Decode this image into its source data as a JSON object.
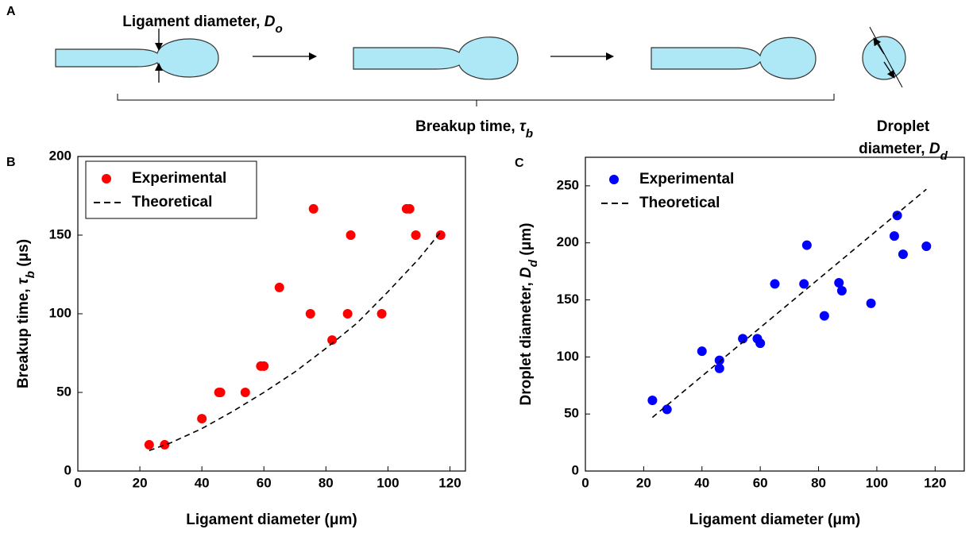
{
  "diagram": {
    "panel": "A",
    "ligament_label": {
      "text": "Ligament diameter, ",
      "symbol": "D",
      "subscript": "o"
    },
    "breakup_label": {
      "text": "Breakup time, ",
      "symbol": "τ",
      "subscript": "b"
    },
    "droplet_label": {
      "line1": "Droplet",
      "text": "diameter, ",
      "symbol": "D",
      "subscript": "d"
    }
  },
  "chart_data": [
    {
      "type": "scatter",
      "panel": "B",
      "xlabel": "Ligament diameter (μm)",
      "ylabel": {
        "text": "Breakup time, ",
        "symbol": "τ",
        "subscript": "b",
        "unit": " (μs)"
      },
      "xlim": [
        0,
        125
      ],
      "xticks": [
        0,
        20,
        40,
        60,
        80,
        100,
        120
      ],
      "ylim": [
        0,
        200
      ],
      "yticks": [
        0,
        50,
        100,
        150,
        200
      ],
      "legend": "top-left",
      "series": [
        {
          "name": "Experimental",
          "color": "#ff0000",
          "mode": "markers",
          "x": [
            23,
            28,
            40,
            45.5,
            46,
            54,
            59,
            60,
            65,
            75,
            76,
            82,
            87,
            88,
            98,
            106,
            107,
            109,
            117
          ],
          "values": [
            16.7,
            16.7,
            33.3,
            50,
            50,
            50,
            66.7,
            66.7,
            116.7,
            100,
            166.7,
            83.3,
            100,
            150,
            100,
            166.7,
            166.7,
            150,
            150
          ]
        },
        {
          "name": "Theoretical",
          "color": "#000000",
          "mode": "dashed-line",
          "x": [
            23,
            30,
            40,
            50,
            60,
            70,
            80,
            90,
            100,
            110,
            117
          ],
          "values": [
            13,
            18,
            27,
            38,
            50,
            63,
            78,
            94,
            114,
            135,
            152
          ]
        }
      ]
    },
    {
      "type": "scatter",
      "panel": "C",
      "xlabel": "Ligament diameter (μm)",
      "ylabel": {
        "text": "Droplet diameter, ",
        "symbol": "D",
        "subscript": "d",
        "unit": " (μm)"
      },
      "xlim": [
        0,
        130
      ],
      "xticks": [
        0,
        20,
        40,
        60,
        80,
        100,
        120
      ],
      "ylim": [
        0,
        275
      ],
      "yticks": [
        0,
        50,
        100,
        150,
        200,
        250
      ],
      "legend": "top-left",
      "series": [
        {
          "name": "Experimental",
          "color": "#0000ff",
          "mode": "markers",
          "x": [
            23,
            28,
            40,
            46,
            46,
            54,
            59,
            60,
            65,
            75,
            76,
            82,
            87,
            88,
            98,
            106,
            107,
            109,
            117
          ],
          "values": [
            62,
            54,
            105,
            97,
            90,
            116,
            116,
            112,
            164,
            164,
            198,
            136,
            165,
            158,
            147,
            206,
            224,
            190,
            197
          ]
        },
        {
          "name": "Theoretical",
          "color": "#000000",
          "mode": "dashed-line",
          "x": [
            23,
            117
          ],
          "values": [
            47,
            247
          ]
        }
      ]
    }
  ]
}
